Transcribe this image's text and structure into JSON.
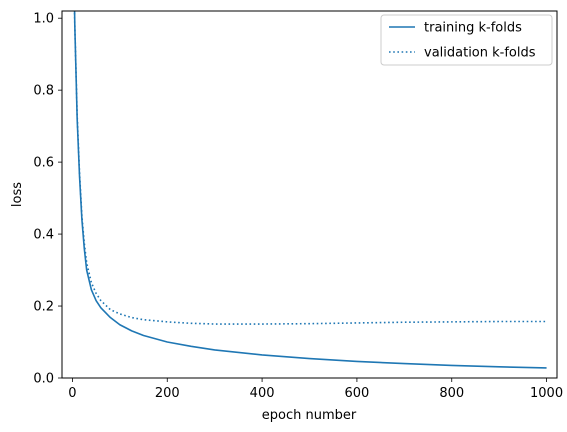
{
  "chart_data": {
    "type": "line",
    "title": "",
    "xlabel": "epoch number",
    "ylabel": "loss",
    "xlim": [
      -22,
      1022
    ],
    "ylim": [
      0.0,
      1.02
    ],
    "xticks": [
      0,
      200,
      400,
      600,
      800,
      1000
    ],
    "yticks": [
      0.0,
      0.2,
      0.4,
      0.6,
      0.8,
      1.0
    ],
    "xtick_labels": [
      "0",
      "200",
      "400",
      "600",
      "800",
      "1000"
    ],
    "ytick_labels": [
      "0.0",
      "0.2",
      "0.4",
      "0.6",
      "0.8",
      "1.0"
    ],
    "grid": false,
    "legend": "top-right",
    "color": "#1f77b4",
    "series": [
      {
        "name": "training k-folds",
        "style": "solid",
        "x": [
          0,
          5,
          10,
          15,
          20,
          25,
          30,
          40,
          50,
          60,
          80,
          100,
          125,
          150,
          200,
          250,
          300,
          400,
          500,
          600,
          700,
          800,
          900,
          1000
        ],
        "y": [
          1.4,
          0.98,
          0.72,
          0.56,
          0.44,
          0.36,
          0.3,
          0.245,
          0.215,
          0.195,
          0.168,
          0.148,
          0.131,
          0.118,
          0.1,
          0.088,
          0.078,
          0.064,
          0.054,
          0.046,
          0.04,
          0.035,
          0.031,
          0.028
        ]
      },
      {
        "name": "validation k-folds",
        "style": "dotted",
        "x": [
          0,
          5,
          10,
          15,
          20,
          25,
          30,
          40,
          50,
          60,
          80,
          100,
          125,
          150,
          200,
          250,
          300,
          400,
          500,
          600,
          700,
          800,
          900,
          1000
        ],
        "y": [
          1.4,
          0.98,
          0.73,
          0.57,
          0.45,
          0.375,
          0.32,
          0.265,
          0.235,
          0.215,
          0.19,
          0.178,
          0.168,
          0.162,
          0.156,
          0.152,
          0.15,
          0.15,
          0.151,
          0.153,
          0.155,
          0.156,
          0.157,
          0.157
        ]
      }
    ]
  }
}
